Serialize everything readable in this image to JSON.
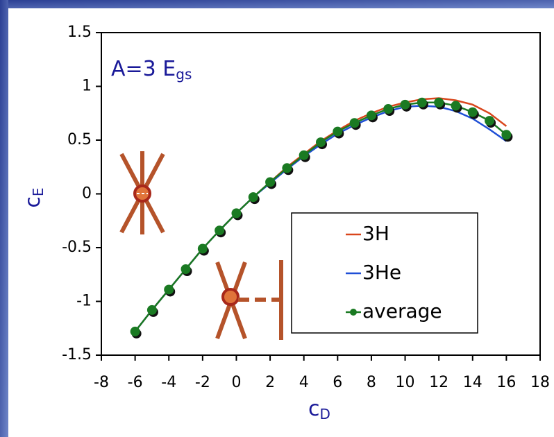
{
  "chart_data": {
    "type": "line",
    "title": "A=3 E",
    "title_sub": "gs",
    "x_label": "c",
    "x_label_sub": "D",
    "y_label": "c",
    "y_label_sub": "E",
    "x": [
      -6,
      -5,
      -4,
      -3,
      -2,
      -1,
      0,
      1,
      2,
      3,
      4,
      5,
      6,
      7,
      8,
      9,
      10,
      11,
      12,
      13,
      14,
      15,
      16
    ],
    "series": [
      {
        "name": "3H",
        "color": "#d9461c",
        "marker": false,
        "values": [
          -1.28,
          -1.08,
          -0.89,
          -0.7,
          -0.51,
          -0.34,
          -0.18,
          -0.03,
          0.11,
          0.25,
          0.37,
          0.49,
          0.59,
          0.68,
          0.75,
          0.81,
          0.85,
          0.88,
          0.89,
          0.87,
          0.83,
          0.75,
          0.63
        ]
      },
      {
        "name": "3He",
        "color": "#1f4fd6",
        "marker": false,
        "values": [
          -1.28,
          -1.08,
          -0.89,
          -0.7,
          -0.51,
          -0.34,
          -0.18,
          -0.03,
          0.1,
          0.23,
          0.35,
          0.46,
          0.56,
          0.64,
          0.71,
          0.77,
          0.81,
          0.82,
          0.81,
          0.77,
          0.7,
          0.6,
          0.49
        ]
      },
      {
        "name": "average",
        "color": "#1a7a22",
        "marker": true,
        "values": [
          -1.28,
          -1.08,
          -0.89,
          -0.7,
          -0.51,
          -0.34,
          -0.18,
          -0.03,
          0.11,
          0.24,
          0.36,
          0.48,
          0.58,
          0.66,
          0.73,
          0.79,
          0.83,
          0.85,
          0.85,
          0.82,
          0.76,
          0.68,
          0.55
        ]
      }
    ],
    "xlim": [
      -8,
      18
    ],
    "xticks": [
      -8,
      -6,
      -4,
      -2,
      0,
      2,
      4,
      6,
      8,
      10,
      12,
      14,
      16,
      18
    ],
    "ylim": [
      -1.5,
      1.5
    ],
    "yticks": [
      -1.5,
      -1,
      -0.5,
      0,
      0.5,
      1,
      1.5
    ]
  }
}
